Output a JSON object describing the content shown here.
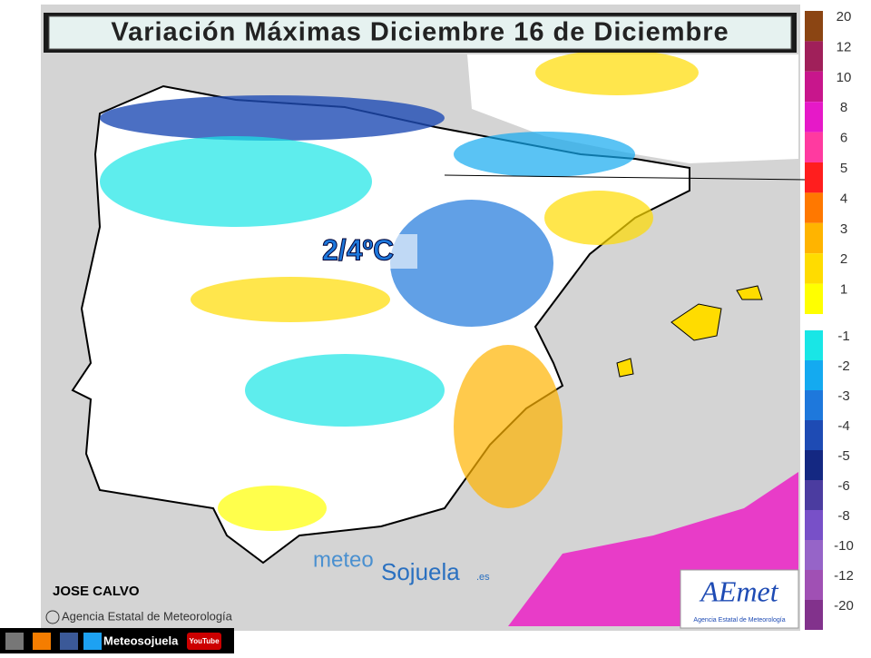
{
  "header": {
    "title": "Variación Máximas Diciembre 16 de Diciembre"
  },
  "map": {
    "annotation": "2/4ºC",
    "author": "JOSE CALVO",
    "source": "Agencia Estatal de Meteorología",
    "watermark": {
      "part1": "meteo",
      "part2": "Sojuela",
      "suffix": ".es"
    },
    "logo": {
      "name": "AEmet",
      "subtitle": "Agencia Estatal de Meteorología"
    }
  },
  "legend": {
    "warm": [
      {
        "label": "20",
        "color": "#8b4513"
      },
      {
        "label": "12",
        "color": "#a0205a"
      },
      {
        "label": "10",
        "color": "#c8168c"
      },
      {
        "label": "8",
        "color": "#e619c8"
      },
      {
        "label": "6",
        "color": "#ff3aa0"
      },
      {
        "label": "5",
        "color": "#ff1e1e"
      },
      {
        "label": "4",
        "color": "#ff7800"
      },
      {
        "label": "3",
        "color": "#ffb400"
      },
      {
        "label": "2",
        "color": "#ffdc00"
      },
      {
        "label": "1",
        "color": "#ffff00"
      }
    ],
    "cold": [
      {
        "label": "-1",
        "color": "#19e6e6"
      },
      {
        "label": "-2",
        "color": "#14aaf0"
      },
      {
        "label": "-3",
        "color": "#1e78dc"
      },
      {
        "label": "-4",
        "color": "#1e4bb4"
      },
      {
        "label": "-5",
        "color": "#142882"
      },
      {
        "label": "-6",
        "color": "#4b3ca0"
      },
      {
        "label": "-8",
        "color": "#7850c8"
      },
      {
        "label": "-10",
        "color": "#9664c8"
      },
      {
        "label": "-12",
        "color": "#a050b4"
      },
      {
        "label": "-20",
        "color": "#82328c"
      }
    ]
  },
  "footer": {
    "social": "Meteosojuela",
    "youtube": "YouTube"
  }
}
